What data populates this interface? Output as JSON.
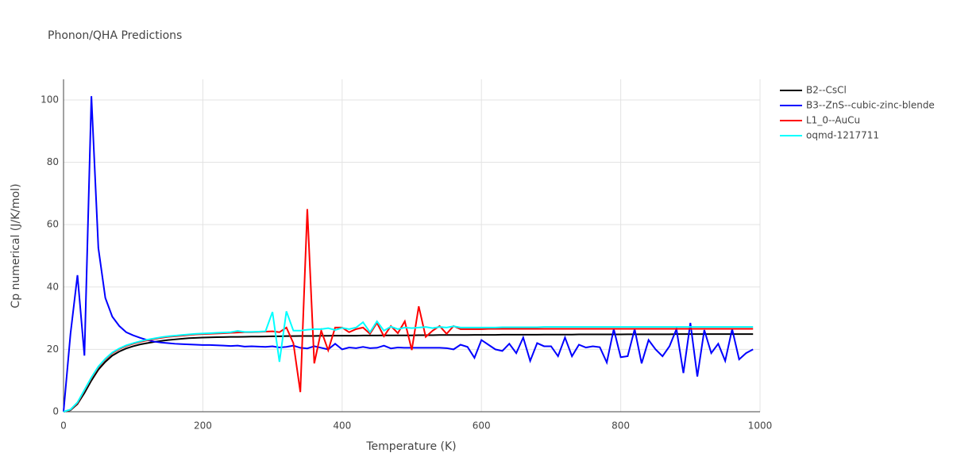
{
  "chart_data": {
    "type": "line",
    "title": "Phonon/QHA Predictions",
    "x_label": "Temperature (K)",
    "y_label": "Cp numerical (J/K/mol)",
    "x": [
      0,
      10,
      20,
      30,
      40,
      50,
      60,
      70,
      80,
      90,
      100,
      110,
      120,
      130,
      140,
      150,
      160,
      170,
      180,
      190,
      200,
      210,
      220,
      230,
      240,
      250,
      260,
      270,
      280,
      290,
      300,
      310,
      320,
      330,
      340,
      350,
      360,
      370,
      380,
      390,
      400,
      410,
      420,
      430,
      440,
      450,
      460,
      470,
      480,
      490,
      500,
      510,
      520,
      530,
      540,
      550,
      560,
      570,
      580,
      590,
      600,
      610,
      620,
      630,
      640,
      650,
      660,
      670,
      680,
      690,
      700,
      710,
      720,
      730,
      740,
      750,
      760,
      770,
      780,
      790,
      800,
      810,
      820,
      830,
      840,
      850,
      860,
      870,
      880,
      890,
      900,
      910,
      920,
      930,
      940,
      950,
      960,
      970,
      980,
      990
    ],
    "xlim": [
      0,
      1000
    ],
    "xticks": [
      0,
      200,
      400,
      600,
      800,
      1000
    ],
    "ylim": [
      0,
      106.6
    ],
    "yticks": [
      0,
      20,
      40,
      60,
      80,
      100
    ],
    "grid": true,
    "legend": "right",
    "series": [
      {
        "name": "B2--CsCl",
        "color": "#000000",
        "values": [
          0,
          0.5,
          2.5,
          6,
          10,
          13.5,
          16,
          18,
          19.3,
          20.3,
          21,
          21.6,
          22,
          22.4,
          22.7,
          23,
          23.2,
          23.4,
          23.6,
          23.7,
          23.8,
          23.85,
          23.9,
          23.95,
          24,
          24,
          24.05,
          24.1,
          24.1,
          24.15,
          24.2,
          24.2,
          24.25,
          24.25,
          24.3,
          24.3,
          24.3,
          24.35,
          24.35,
          24.4,
          24.4,
          24.4,
          24.4,
          24.45,
          24.45,
          24.45,
          24.5,
          24.5,
          24.5,
          24.5,
          24.5,
          24.55,
          24.55,
          24.55,
          24.6,
          24.6,
          24.6,
          24.6,
          24.6,
          24.65,
          24.65,
          24.65,
          24.65,
          24.7,
          24.7,
          24.7,
          24.7,
          24.7,
          24.7,
          24.75,
          24.75,
          24.75,
          24.75,
          24.75,
          24.8,
          24.8,
          24.8,
          24.8,
          24.8,
          24.8,
          24.8,
          24.85,
          24.85,
          24.85,
          24.85,
          24.85,
          24.85,
          24.85,
          24.9,
          24.9,
          24.9,
          24.9,
          24.9,
          24.9,
          24.9,
          24.9,
          24.9,
          24.9,
          24.9,
          24.9
        ]
      },
      {
        "name": "B3--ZnS--cubic-zinc-blende",
        "color": "#0000ff",
        "values": [
          0,
          25,
          43.8,
          18,
          101.2,
          52.5,
          36.5,
          30.5,
          27.5,
          25.5,
          24.5,
          23.7,
          23,
          22.5,
          22.2,
          22,
          21.8,
          21.7,
          21.6,
          21.5,
          21.4,
          21.4,
          21.3,
          21.2,
          21.1,
          21.2,
          20.9,
          21,
          20.9,
          20.8,
          21,
          20.6,
          20.8,
          21.2,
          20.5,
          20.3,
          21,
          20.5,
          20,
          21.8,
          20,
          20.6,
          20.4,
          20.8,
          20.4,
          20.5,
          21.2,
          20.3,
          20.6,
          20.5,
          20.5,
          20.5,
          20.5,
          20.5,
          20.5,
          20.4,
          20,
          21.5,
          20.8,
          17.3,
          23,
          21.5,
          20,
          19.5,
          21.8,
          18.8,
          23.8,
          16.3,
          22,
          21,
          21,
          17.8,
          23.8,
          17.8,
          21.5,
          20.6,
          21,
          20.7,
          15.8,
          26.5,
          17.5,
          17.8,
          26.5,
          15.5,
          23,
          20,
          17.8,
          21,
          26.5,
          12.4,
          28.5,
          11.3,
          26.2,
          18.8,
          21.8,
          16.3,
          26.5,
          16.8,
          18.8,
          20
        ]
      },
      {
        "name": "L1_0--AuCu",
        "color": "#ff0000",
        "values": [
          0,
          0.6,
          2.8,
          6.8,
          10.8,
          14.3,
          16.8,
          18.8,
          20.1,
          21.1,
          21.8,
          22.4,
          22.9,
          23.3,
          23.7,
          24,
          24.2,
          24.4,
          24.6,
          24.8,
          24.9,
          25,
          25.1,
          25.2,
          25.3,
          25.4,
          25.5,
          25.5,
          25.6,
          25.7,
          25.8,
          25.5,
          27,
          22,
          6.3,
          65,
          15.5,
          26,
          19.7,
          27,
          27,
          25.5,
          26.5,
          27,
          25,
          28.5,
          24.2,
          27.5,
          25.2,
          29,
          19.8,
          33.8,
          24,
          26,
          27.5,
          25,
          27.5,
          26.5,
          26.5,
          26.5,
          26.5,
          26.6,
          26.6,
          26.6,
          26.6,
          26.6,
          26.6,
          26.6,
          26.6,
          26.6,
          26.6,
          26.6,
          26.6,
          26.6,
          26.6,
          26.6,
          26.6,
          26.6,
          26.6,
          26.6,
          26.6,
          26.6,
          26.6,
          26.6,
          26.6,
          26.6,
          26.6,
          26.6,
          26.6,
          26.6,
          26.6,
          26.6,
          26.6,
          26.6,
          26.6,
          26.6,
          26.6,
          26.6,
          26.6,
          26.6
        ]
      },
      {
        "name": "oqmd-1217711",
        "color": "#00ffff",
        "values": [
          0,
          0.7,
          3,
          7,
          11,
          14.5,
          17,
          19,
          20.3,
          21.3,
          22,
          22.6,
          23.1,
          23.5,
          23.9,
          24.2,
          24.4,
          24.6,
          24.8,
          25,
          25.1,
          25.2,
          25.3,
          25.4,
          25.5,
          25.9,
          25.6,
          25.6,
          25.7,
          25.8,
          32,
          16,
          32.2,
          26,
          26,
          26.3,
          26.5,
          26.5,
          26.8,
          26.2,
          26.9,
          26.5,
          27,
          28.7,
          25.5,
          29,
          26,
          27.3,
          26.5,
          27,
          26.8,
          27,
          27.2,
          26.8,
          27.2,
          27,
          27.4,
          27,
          27,
          27,
          27,
          27,
          27,
          27.1,
          27.1,
          27.1,
          27.1,
          27.1,
          27.1,
          27.2,
          27.2,
          27.2,
          27.2,
          27.2,
          27.2,
          27.2,
          27.2,
          27.2,
          27.2,
          27.2,
          27.2,
          27.2,
          27.2,
          27.2,
          27.2,
          27.2,
          27.2,
          27.2,
          27.2,
          27.2,
          27.2,
          27.2,
          27.2,
          27.2,
          27.2,
          27.2,
          27.2,
          27.2,
          27.2,
          27.2
        ]
      }
    ]
  }
}
